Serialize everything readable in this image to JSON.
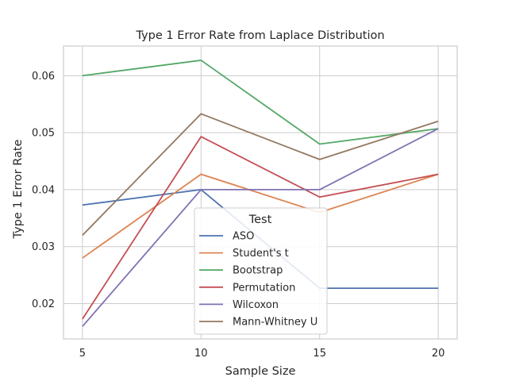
{
  "chart_data": {
    "type": "line",
    "title": "Type 1 Error Rate from Laplace Distribution",
    "xlabel": "Sample Size",
    "ylabel": "Type 1 Error Rate",
    "x": [
      5,
      10,
      15,
      20
    ],
    "x_ticks": [
      "5",
      "10",
      "15",
      "20"
    ],
    "y_ticks": [
      "0.02",
      "0.03",
      "0.04",
      "0.05",
      "0.06"
    ],
    "xlim": [
      4.2,
      20.8
    ],
    "ylim": [
      0.0138,
      0.0652
    ],
    "grid": true,
    "legend": {
      "title": "Test",
      "placement": "lower-center"
    },
    "series": [
      {
        "name": "ASO",
        "color": "#4c72b0",
        "values": [
          0.0373,
          0.04,
          0.0227,
          0.0227
        ]
      },
      {
        "name": "Student's t",
        "color": "#dd8452",
        "values": [
          0.028,
          0.0427,
          0.036,
          0.0427
        ]
      },
      {
        "name": "Bootstrap",
        "color": "#55a868",
        "values": [
          0.06,
          0.0627,
          0.048,
          0.0507
        ]
      },
      {
        "name": "Permutation",
        "color": "#c44e52",
        "values": [
          0.0173,
          0.0493,
          0.0387,
          0.0427
        ]
      },
      {
        "name": "Wilcoxon",
        "color": "#8172b3",
        "values": [
          0.016,
          0.04,
          0.04,
          0.0507
        ]
      },
      {
        "name": "Mann-Whitney U",
        "color": "#937860",
        "values": [
          0.032,
          0.0533,
          0.0453,
          0.052
        ]
      }
    ]
  }
}
